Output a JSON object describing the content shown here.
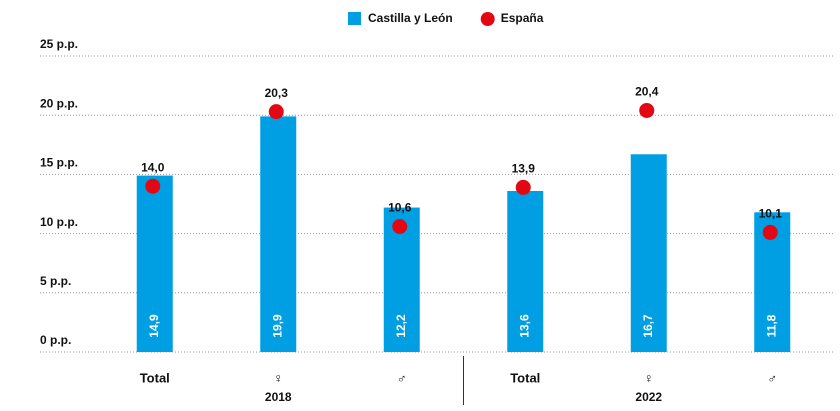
{
  "chart_data": {
    "type": "bar",
    "categories": [
      "Total",
      "♀",
      "♂",
      "Total",
      "♀",
      "♂"
    ],
    "groups": [
      "2018",
      "2022"
    ],
    "series": [
      {
        "name": "Castilla y León",
        "kind": "bar",
        "color": "#009fe3",
        "values": [
          14.9,
          19.9,
          12.2,
          13.6,
          16.7,
          11.8
        ],
        "value_labels": [
          "14,9",
          "19,9",
          "12,2",
          "13,6",
          "16,7",
          "11,8"
        ]
      },
      {
        "name": "España",
        "kind": "dot",
        "color": "#e30613",
        "values": [
          14.0,
          20.3,
          10.6,
          13.9,
          20.4,
          10.1
        ],
        "value_labels": [
          "14,0",
          "20,3",
          "10,6",
          "13,9",
          "20,4",
          "10,1"
        ]
      }
    ],
    "ylim": [
      0,
      25
    ],
    "yticks": [
      {
        "value": 0,
        "label": "0 p.p."
      },
      {
        "value": 5,
        "label": "5 p.p."
      },
      {
        "value": 10,
        "label": "10 p.p."
      },
      {
        "value": 15,
        "label": "15 p.p."
      },
      {
        "value": 20,
        "label": "20 p.p."
      },
      {
        "value": 25,
        "label": "25 p.p."
      }
    ],
    "grid": true,
    "legend": "top"
  }
}
